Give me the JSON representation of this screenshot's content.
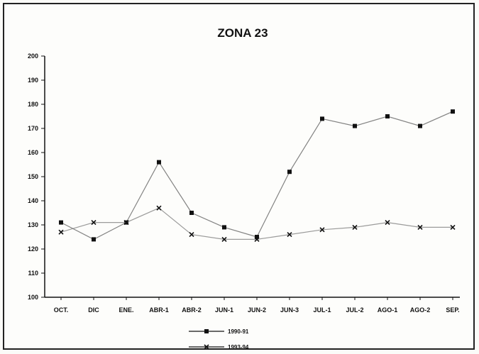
{
  "chart_data": {
    "type": "line",
    "title": "ZONA 23",
    "xlabel": "",
    "ylabel": "",
    "ylim": [
      100,
      200
    ],
    "yticks": [
      100,
      110,
      120,
      130,
      140,
      150,
      160,
      170,
      180,
      190,
      200
    ],
    "categories": [
      "OCT.",
      "DIC",
      "ENE.",
      "ABR-1",
      "ABR-2",
      "JUN-1",
      "JUN-2",
      "JUN-3",
      "JUL-1",
      "JUL-2",
      "AGO-1",
      "AGO-2",
      "SEP."
    ],
    "series": [
      {
        "name": "1990-91",
        "marker": "square",
        "values": [
          131,
          124,
          131,
          156,
          135,
          129,
          125,
          152,
          174,
          171,
          175,
          171,
          177
        ]
      },
      {
        "name": "1993-94",
        "marker": "x",
        "values": [
          127,
          131,
          131,
          137,
          126,
          124,
          124,
          126,
          128,
          129,
          131,
          129,
          129
        ]
      }
    ],
    "legend_position": "bottom-center",
    "grid": false
  }
}
